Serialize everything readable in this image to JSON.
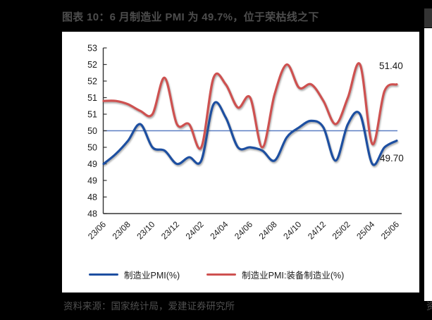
{
  "title": "图表 10：6 月制造业 PMI 为 49.7%，位于荣枯线之下",
  "source": "资料来源：国家统计局，爱建证券研究所",
  "edge_fragments": {
    "bottom_right_source": "资"
  },
  "chart_data": {
    "type": "line",
    "x": [
      "23/06",
      "23/07",
      "23/08",
      "23/09",
      "23/10",
      "23/11",
      "23/12",
      "24/01",
      "24/02",
      "24/03",
      "24/04",
      "24/05",
      "24/06",
      "24/07",
      "24/08",
      "24/09",
      "24/10",
      "24/11",
      "24/12",
      "25/01",
      "25/02",
      "25/03",
      "25/04",
      "25/05",
      "25/06"
    ],
    "x_tick_labels": [
      "23/06",
      "23/08",
      "23/10",
      "23/12",
      "24/02",
      "24/04",
      "24/06",
      "24/08",
      "24/10",
      "24/12",
      "25/02",
      "25/04",
      "25/06"
    ],
    "y_axis": {
      "tick_values": [
        52.5,
        52.0,
        51.5,
        51.0,
        50.5,
        50.0,
        49.5,
        49.0,
        48.5,
        48.0,
        47.5
      ],
      "tick_labels": [
        "53",
        "52",
        "52",
        "51",
        "51",
        "50",
        "50",
        "49",
        "49",
        "48",
        "48"
      ]
    },
    "reference_line": {
      "value": 50.0,
      "color": "#5b7fc2"
    },
    "series": [
      {
        "name": "制造业PMI(%)",
        "color": "#1d4fa1",
        "values": [
          49.0,
          49.3,
          49.7,
          50.2,
          49.5,
          49.4,
          49.0,
          49.2,
          49.1,
          50.8,
          50.4,
          49.5,
          49.5,
          49.4,
          49.1,
          49.8,
          50.1,
          50.3,
          50.1,
          49.1,
          50.2,
          50.5,
          49.0,
          49.5,
          49.7
        ]
      },
      {
        "name": "制造业PMI:装备制造业(%)",
        "color": "#ce5150",
        "values": [
          50.9,
          50.9,
          50.8,
          50.6,
          50.5,
          51.6,
          50.2,
          50.2,
          49.5,
          51.6,
          51.4,
          50.7,
          51.0,
          49.5,
          51.1,
          52.0,
          51.3,
          51.4,
          50.9,
          50.2,
          51.0,
          52.0,
          49.6,
          51.2,
          51.4
        ]
      }
    ],
    "annotations": [
      {
        "text": "51.40",
        "series": "制造业PMI:装备制造业(%)"
      },
      {
        "text": "49.70",
        "series": "制造业PMI(%)"
      }
    ],
    "legend_position": "bottom",
    "grid": false
  }
}
